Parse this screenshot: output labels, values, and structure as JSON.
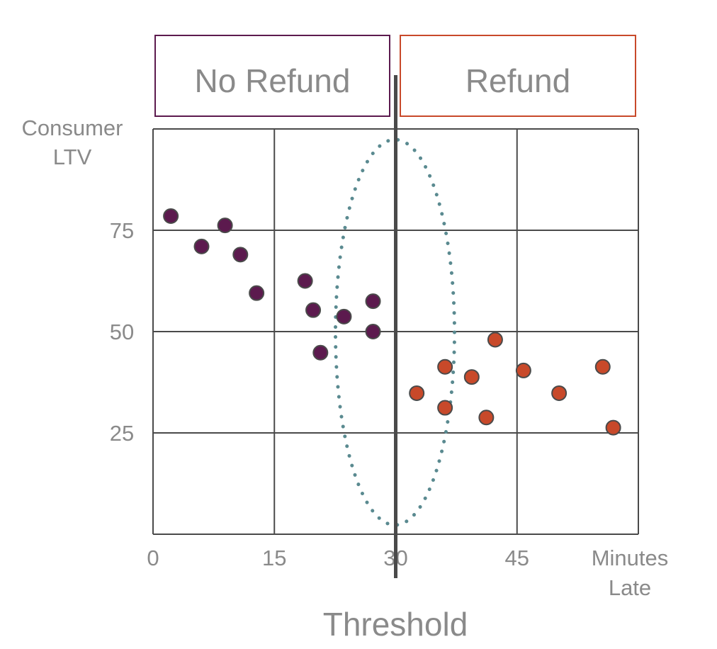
{
  "chart_data": {
    "type": "scatter",
    "xlabel": [
      "Minutes",
      "Late"
    ],
    "ylabel": [
      "Consumer",
      "LTV"
    ],
    "x_ticks": [
      "0",
      "15",
      "30",
      "45"
    ],
    "y_ticks": [
      "25",
      "50",
      "75"
    ],
    "xlim": [
      0,
      60
    ],
    "ylim": [
      0,
      100
    ],
    "grid": true,
    "threshold": {
      "x": 30,
      "label": "Threshold"
    },
    "regions": [
      {
        "label": "No Refund",
        "color": "#5c1a4e"
      },
      {
        "label": "Refund",
        "color": "#c8492a"
      }
    ],
    "highlight": {
      "shape": "dotted-ellipse",
      "center": [
        30,
        50
      ],
      "color": "#5a8a90"
    },
    "series": [
      {
        "color": "#5c1a4e",
        "points": [
          [
            2.2,
            78.5
          ],
          [
            6.0,
            71.0
          ],
          [
            8.9,
            76.2
          ],
          [
            10.8,
            69.0
          ],
          [
            12.8,
            59.5
          ],
          [
            18.8,
            62.5
          ],
          [
            19.8,
            55.3
          ],
          [
            20.7,
            44.8
          ],
          [
            23.6,
            53.7
          ],
          [
            27.2,
            57.5
          ],
          [
            27.2,
            50.0
          ]
        ]
      },
      {
        "color": "#c8492a",
        "points": [
          [
            32.6,
            34.8
          ],
          [
            36.1,
            41.3
          ],
          [
            36.1,
            31.2
          ],
          [
            39.4,
            38.8
          ],
          [
            41.2,
            28.8
          ],
          [
            42.3,
            48.0
          ],
          [
            45.8,
            40.4
          ],
          [
            50.2,
            34.8
          ],
          [
            55.6,
            41.3
          ],
          [
            56.9,
            26.3
          ]
        ]
      }
    ]
  }
}
